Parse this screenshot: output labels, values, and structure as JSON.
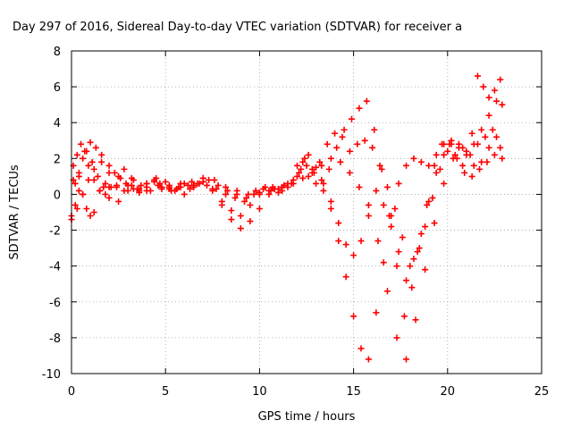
{
  "chart_data": {
    "type": "scatter",
    "title": "Day 297 of 2016, Sidereal Day-to-day VTEC variation (SDTVAR) for receiver a",
    "xlabel": "GPS time / hours",
    "ylabel": "SDTVAR / TECUs",
    "xlim": [
      0,
      25
    ],
    "ylim": [
      -10,
      8
    ],
    "xticks": [
      0,
      5,
      10,
      15,
      20,
      25
    ],
    "yticks": [
      -10,
      -8,
      -6,
      -4,
      -2,
      0,
      2,
      4,
      6,
      8
    ],
    "grid": true,
    "marker": "+",
    "color": "#ff0000",
    "series": [
      {
        "x": [
          0.0,
          0.2,
          0.4,
          0.6,
          0.8,
          1.0,
          1.2,
          1.5,
          1.8,
          2.0,
          2.3,
          2.6,
          3.0,
          3.3,
          3.6,
          4.0,
          4.4,
          4.8,
          5.2,
          5.6,
          6.0,
          6.5,
          7.0,
          7.5,
          8.0,
          8.5,
          9.0,
          9.5,
          10.0,
          10.5,
          11.0,
          11.5,
          12.0,
          12.3,
          12.6,
          13.0,
          13.4,
          13.8,
          14.2,
          14.6,
          15.0,
          15.4,
          15.8,
          16.2,
          16.6,
          17.0,
          17.4,
          17.8,
          18.2,
          18.6,
          19.0,
          19.4,
          19.8,
          20.2,
          20.6,
          21.0,
          21.4,
          21.8,
          22.2,
          22.6,
          22.9
        ],
        "y": [
          -1.2,
          -0.6,
          0.2,
          0.0,
          -0.8,
          -1.2,
          -1.0,
          0.2,
          0.6,
          0.4,
          1.2,
          0.9,
          0.2,
          0.3,
          0.1,
          0.6,
          0.8,
          0.4,
          0.5,
          0.3,
          0.6,
          0.4,
          0.7,
          0.2,
          -0.6,
          -1.4,
          -1.9,
          -1.5,
          -0.8,
          0.0,
          0.3,
          0.6,
          1.0,
          1.8,
          2.2,
          1.5,
          0.6,
          -0.4,
          -1.6,
          -2.8,
          -3.4,
          -2.6,
          -1.2,
          0.2,
          -0.6,
          -1.8,
          -3.2,
          -4.8,
          -3.6,
          -2.2,
          -0.4,
          1.2,
          2.2,
          2.8,
          2.6,
          2.2,
          1.6,
          1.8,
          2.6,
          3.2,
          2.0
        ]
      },
      {
        "x": [
          0.1,
          0.3,
          0.5,
          0.8,
          1.1,
          1.4,
          1.7,
          2.0,
          2.4,
          2.8,
          3.2,
          3.6,
          4.0,
          4.5,
          5.0,
          5.5,
          6.0,
          6.5,
          7.0,
          7.5,
          8.0,
          8.5,
          9.0,
          9.5,
          10.0,
          10.5,
          11.0,
          11.5,
          12.0,
          12.4,
          12.8,
          13.2,
          13.6,
          14.0,
          14.4,
          14.8,
          15.2,
          15.6,
          16.0,
          16.4,
          16.8,
          17.2,
          17.6,
          18.0,
          18.4,
          18.8,
          19.2,
          19.6,
          20.0,
          20.4,
          20.8,
          21.2,
          21.6,
          22.0,
          22.4,
          22.8
        ],
        "y": [
          1.6,
          2.2,
          2.8,
          2.4,
          1.8,
          1.0,
          0.4,
          -0.2,
          0.5,
          1.4,
          0.9,
          0.3,
          0.2,
          0.9,
          0.7,
          0.2,
          0.0,
          0.5,
          0.9,
          0.3,
          -0.4,
          -0.9,
          -1.2,
          -0.6,
          0.0,
          0.2,
          0.1,
          0.4,
          1.6,
          2.0,
          1.4,
          1.8,
          2.8,
          3.4,
          3.2,
          2.4,
          2.8,
          3.0,
          2.6,
          1.6,
          0.4,
          -0.8,
          -2.4,
          -4.0,
          -3.2,
          -1.8,
          -0.2,
          1.4,
          2.4,
          2.2,
          1.6,
          2.2,
          2.8,
          3.2,
          3.6,
          2.6
        ]
      },
      {
        "x": [
          0.2,
          0.4,
          0.6,
          0.9,
          1.2,
          1.5,
          1.8,
          2.1,
          2.5,
          2.9,
          3.3,
          3.7,
          4.2,
          4.7,
          5.2,
          5.7,
          6.2,
          6.7,
          7.2,
          7.7,
          8.2,
          8.7,
          9.2,
          9.7,
          10.2,
          10.7,
          11.2,
          11.7,
          12.1,
          12.5,
          12.9,
          13.3,
          13.7,
          14.1,
          14.5,
          14.9,
          15.3,
          15.7,
          16.1,
          16.5,
          16.9,
          17.3,
          17.7,
          18.1,
          18.5,
          18.9,
          19.3,
          19.7,
          20.1,
          20.5,
          20.9,
          21.3,
          21.7,
          22.1,
          22.5
        ],
        "y": [
          0.6,
          1.0,
          2.0,
          1.6,
          0.8,
          0.2,
          0.0,
          0.4,
          -0.4,
          0.6,
          0.8,
          0.5,
          0.2,
          0.6,
          0.3,
          0.4,
          0.5,
          0.6,
          0.5,
          0.3,
          0.0,
          -0.2,
          -0.4,
          0.0,
          0.3,
          0.4,
          0.2,
          0.6,
          1.2,
          1.6,
          1.2,
          0.8,
          1.4,
          2.6,
          3.6,
          4.2,
          4.8,
          5.2,
          3.6,
          1.4,
          -1.2,
          -4.0,
          -6.8,
          -5.2,
          -3.0,
          -0.6,
          1.6,
          2.8,
          2.8,
          2.0,
          1.2,
          1.0,
          1.4,
          1.8,
          2.2
        ]
      },
      {
        "x": [
          0.0,
          0.3,
          0.6,
          0.9,
          1.2,
          1.6,
          2.0,
          2.4,
          2.8,
          3.2,
          3.6,
          4.0,
          4.4,
          4.8,
          5.3,
          5.8,
          6.3,
          6.8,
          7.3,
          7.8,
          8.3,
          8.8,
          9.3,
          9.8,
          10.3,
          10.8,
          11.3,
          11.8,
          12.2,
          12.6,
          13.0,
          13.4,
          13.8,
          14.2,
          14.6,
          15.0,
          15.4,
          15.8,
          16.2,
          16.6,
          17.0,
          17.4,
          17.8,
          18.2,
          18.6,
          19.0,
          19.4,
          19.8,
          20.2,
          20.6,
          21.0,
          21.4,
          21.8,
          22.2,
          22.6,
          22.9
        ],
        "y": [
          -1.4,
          -0.8,
          0.0,
          0.8,
          1.4,
          1.8,
          1.2,
          0.4,
          0.2,
          0.5,
          0.2,
          0.4,
          0.7,
          0.3,
          0.2,
          0.4,
          0.3,
          0.6,
          0.8,
          0.5,
          0.2,
          0.0,
          -0.2,
          0.2,
          0.4,
          0.3,
          0.5,
          0.8,
          1.4,
          1.0,
          0.6,
          0.2,
          -0.8,
          -2.6,
          -4.6,
          -6.8,
          -8.6,
          -9.2,
          -6.6,
          -3.8,
          -1.2,
          0.6,
          1.6,
          2.0,
          1.8,
          1.6,
          2.2,
          2.8,
          3.0,
          2.8,
          2.4,
          2.8,
          3.6,
          4.4,
          5.2,
          5.0
        ]
      },
      {
        "x": [
          0.1,
          0.4,
          0.7,
          1.0,
          1.3,
          1.6,
          2.0,
          2.5,
          3.0,
          3.5,
          4.0,
          4.6,
          5.2,
          5.8,
          6.4,
          7.0,
          7.6,
          8.2,
          8.8,
          9.4,
          10.0,
          10.6,
          11.2,
          11.8,
          12.3,
          12.8,
          13.3,
          13.8,
          14.3,
          14.8,
          15.3,
          15.8,
          16.3,
          16.8,
          17.3,
          17.8,
          18.3,
          18.8,
          19.3,
          19.8,
          20.3,
          20.8,
          21.3,
          21.6,
          21.9,
          22.2,
          22.5,
          22.8
        ],
        "y": [
          0.8,
          1.2,
          2.4,
          2.9,
          2.6,
          2.2,
          1.6,
          1.0,
          0.5,
          0.3,
          0.6,
          0.5,
          0.4,
          0.6,
          0.7,
          0.9,
          0.8,
          0.4,
          0.2,
          0.0,
          0.1,
          0.2,
          0.4,
          0.6,
          0.9,
          1.2,
          1.6,
          2.0,
          1.8,
          1.2,
          0.4,
          -0.6,
          -2.6,
          -5.4,
          -8.0,
          -9.2,
          -7.0,
          -4.2,
          -1.6,
          0.6,
          2.0,
          2.6,
          3.4,
          6.6,
          6.0,
          5.4,
          5.8,
          6.4
        ]
      }
    ]
  }
}
